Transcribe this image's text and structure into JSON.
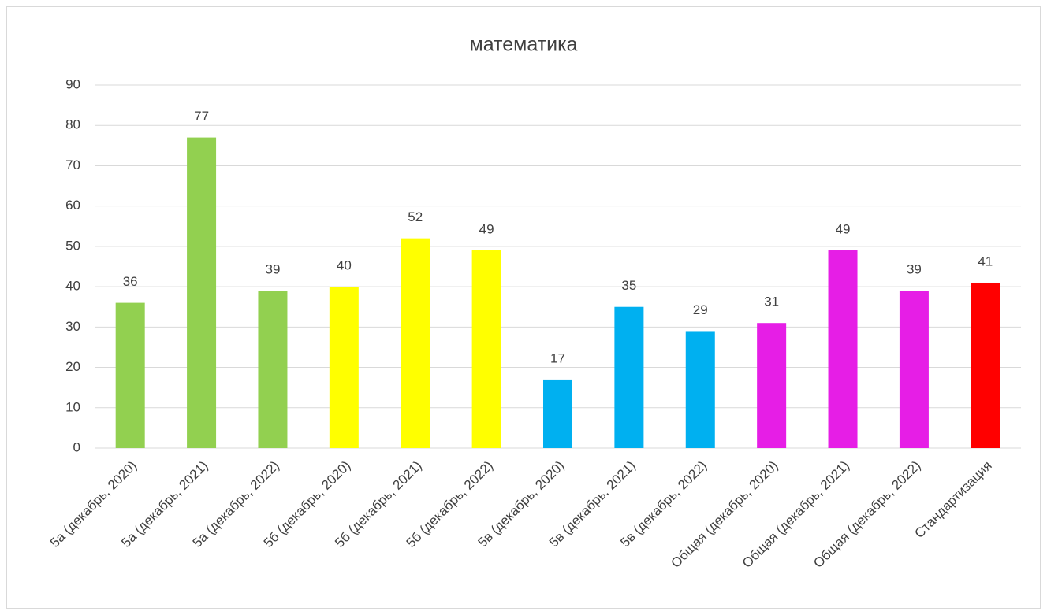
{
  "chart_data": {
    "type": "bar",
    "title": "математика",
    "categories": [
      "5а (декабрь, 2020)",
      "5а (декабрь, 2021)",
      "5а (декабрь, 2022)",
      "5б (декабрь, 2020)",
      "5б (декабрь, 2021)",
      "5б (декабрь, 2022)",
      "5в (декабрь, 2020)",
      "5в (декабрь, 2021)",
      "5в (декабрь, 2022)",
      "Общая (декабрь, 2020)",
      "Общая (декабрь, 2021)",
      "Общая (декабрь, 2022)",
      "Стандартизация"
    ],
    "values": [
      36,
      77,
      39,
      40,
      52,
      49,
      17,
      35,
      29,
      31,
      49,
      39,
      41
    ],
    "colors": [
      "#92d050",
      "#92d050",
      "#92d050",
      "#ffff00",
      "#ffff00",
      "#ffff00",
      "#00b0f0",
      "#00b0f0",
      "#00b0f0",
      "#e61ee6",
      "#e61ee6",
      "#e61ee6",
      "#ff0000"
    ],
    "ylim": [
      0,
      90
    ],
    "yticks": [
      0,
      10,
      20,
      30,
      40,
      50,
      60,
      70,
      80,
      90
    ],
    "grid": true
  }
}
